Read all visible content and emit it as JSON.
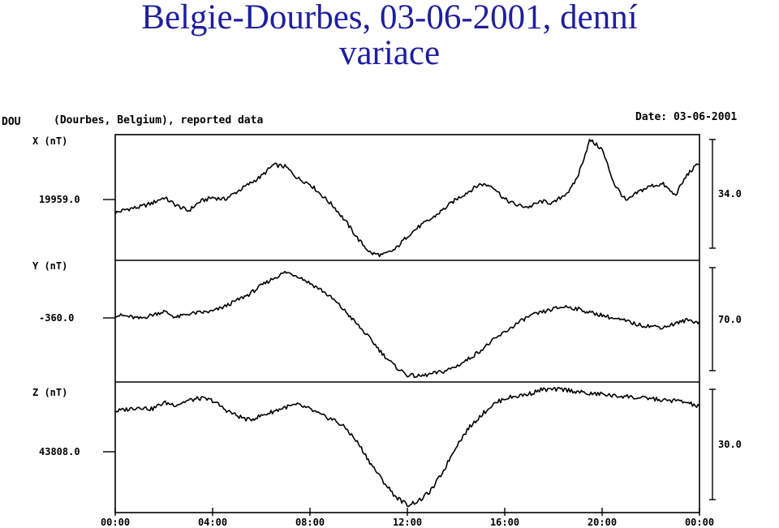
{
  "title": {
    "line1": "Belgie-Dourbes, 03-06-2001, denní",
    "line2": "variace"
  },
  "chart_data": {
    "type": "line",
    "station_code": "DOU",
    "station_desc": "(Dourbes, Belgium), reported data",
    "date_text": "Date: 03-06-2001",
    "x_ticks": [
      "00:00",
      "04:00",
      "08:00",
      "12:00",
      "16:00",
      "20:00",
      "00:00"
    ],
    "x_range_hours": [
      0,
      24
    ],
    "panels": [
      {
        "label": "X (nT)",
        "baseline": "19959.0",
        "scale": "34.0",
        "scale_value": 34.0,
        "x": [
          0,
          0.5,
          1,
          1.5,
          2,
          2.5,
          3,
          3.5,
          4,
          4.5,
          5,
          5.5,
          6,
          6.5,
          7,
          7.5,
          8,
          8.5,
          9,
          9.5,
          10,
          10.5,
          11,
          11.5,
          12,
          12.5,
          13,
          13.5,
          14,
          14.5,
          15,
          15.5,
          16,
          16.5,
          17,
          17.5,
          18,
          18.3,
          18.7,
          19,
          19.5,
          20,
          20.5,
          21,
          21.5,
          22,
          22.5,
          23,
          23.5,
          24
        ],
        "y": [
          -5,
          -3,
          -2,
          0,
          3,
          -1,
          -4,
          1,
          3,
          2,
          6,
          10,
          14,
          20,
          19,
          13,
          10,
          4,
          -2,
          -10,
          -19,
          -26,
          -27,
          -24,
          -17,
          -12,
          -8,
          -3,
          2,
          6,
          10,
          9,
          2,
          -1,
          -2,
          1,
          0,
          3,
          7,
          14,
          33,
          28,
          10,
          1,
          6,
          9,
          10,
          4,
          15,
          21
        ],
        "ylim": [
          -28,
          34
        ]
      },
      {
        "label": "Y (nT)",
        "baseline": "-360.0",
        "scale": "70.0",
        "scale_value": 70.0,
        "x": [
          0,
          0.5,
          1,
          1.5,
          2,
          2.5,
          3,
          3.5,
          4,
          4.5,
          5,
          5.5,
          6,
          6.5,
          7,
          7.5,
          8,
          8.5,
          9,
          9.5,
          10,
          10.5,
          11,
          11.5,
          12,
          12.5,
          13,
          13.5,
          14,
          14.5,
          15,
          15.5,
          16,
          16.5,
          17,
          17.5,
          18,
          18.5,
          19,
          19.5,
          20,
          20.5,
          21,
          21.5,
          22,
          22.5,
          23,
          23.5,
          24
        ],
        "y": [
          -2,
          -3,
          -5,
          -2,
          1,
          -4,
          -1,
          0,
          1,
          5,
          10,
          15,
          22,
          28,
          33,
          30,
          24,
          18,
          10,
          0,
          -11,
          -22,
          -34,
          -44,
          -51,
          -52,
          -50,
          -48,
          -44,
          -38,
          -31,
          -23,
          -16,
          -9,
          -3,
          0,
          3,
          5,
          3,
          0,
          -2,
          -5,
          -7,
          -10,
          -11,
          -12,
          -9,
          -6,
          -8
        ],
        "ylim": [
          -54,
          40
        ]
      },
      {
        "label": "Z (nT)",
        "baseline": "43808.0",
        "scale": "30.0",
        "scale_value": 30.0,
        "x": [
          0,
          0.5,
          1,
          1.5,
          2,
          2.5,
          3,
          3.5,
          4,
          4.5,
          5,
          5.5,
          6,
          6.5,
          7,
          7.5,
          8,
          8.5,
          9,
          9.5,
          10,
          10.5,
          11,
          11.5,
          12,
          12.5,
          13,
          13.5,
          14,
          14.5,
          15,
          15.5,
          16,
          16.5,
          17,
          17.5,
          18,
          18.5,
          19,
          19.5,
          20,
          20.5,
          21,
          21.5,
          22,
          22.5,
          23,
          23.5,
          24
        ],
        "y": [
          18,
          19,
          20,
          19,
          22,
          21,
          23,
          24,
          23,
          19,
          16,
          14,
          16,
          18,
          20,
          21,
          19,
          16,
          14,
          10,
          3,
          -6,
          -14,
          -21,
          -25,
          -23,
          -18,
          -9,
          2,
          10,
          16,
          21,
          24,
          25,
          26,
          28,
          28,
          28,
          27,
          26,
          26,
          25,
          25,
          24,
          24,
          23,
          23,
          22,
          20
        ],
        "ylim": [
          -27,
          30
        ]
      }
    ]
  }
}
